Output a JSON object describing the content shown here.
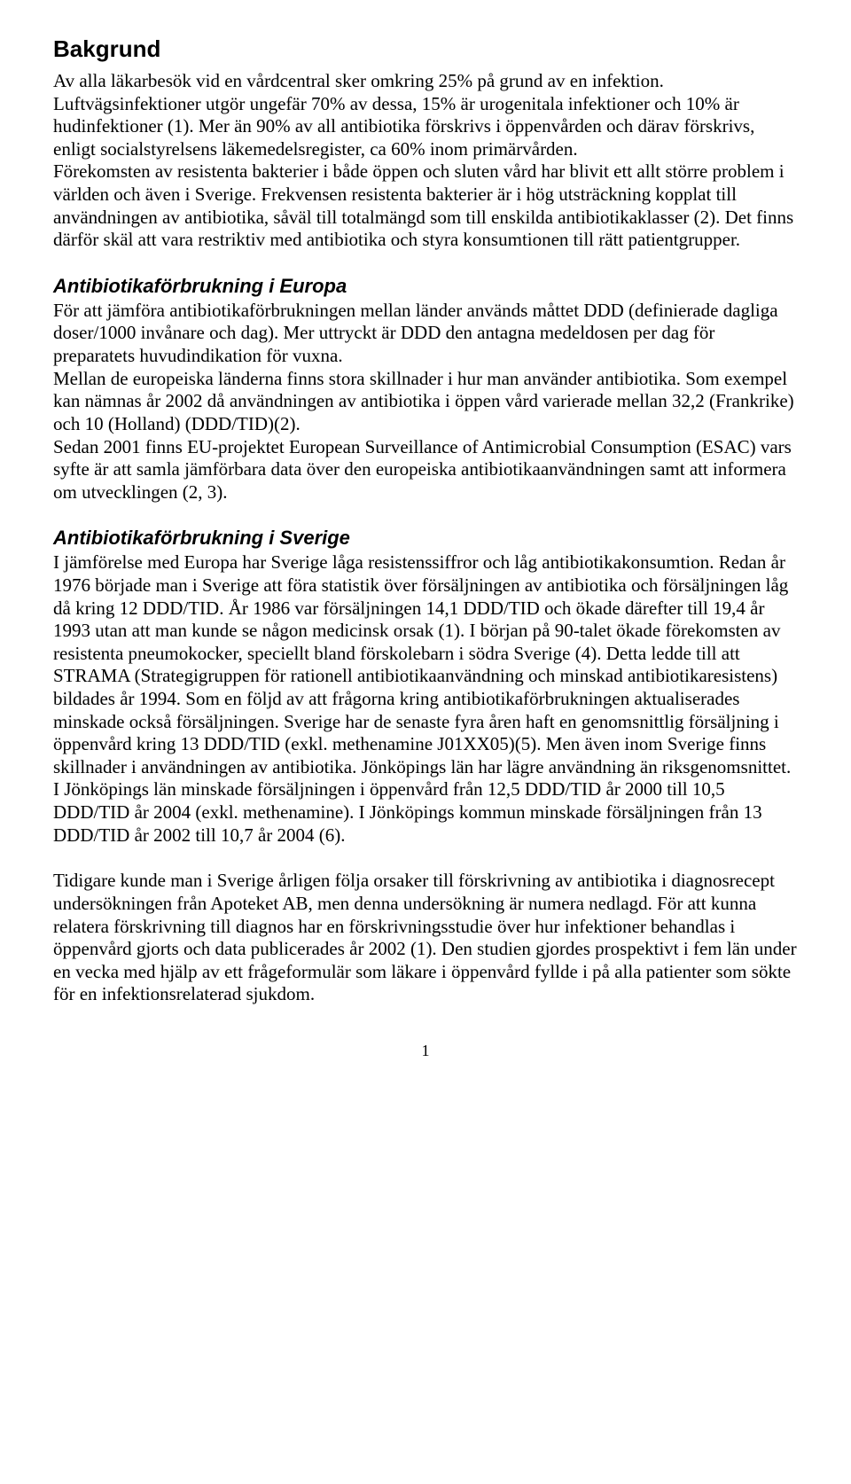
{
  "heading": "Bakgrund",
  "para1": "Av alla läkarbesök vid en vårdcentral sker omkring 25% på grund av en infektion. Luftvägsinfektioner utgör ungefär 70% av dessa, 15% är urogenitala infektioner och 10% är hudinfektioner (1). Mer än 90% av all antibiotika förskrivs i öppenvården och därav förskrivs, enligt socialstyrelsens läkemedelsregister, ca 60% inom primärvården.",
  "para1b": "Förekomsten av resistenta bakterier i både öppen och sluten vård har blivit ett allt större problem i världen och även i Sverige. Frekvensen resistenta bakterier är i hög utsträckning kopplat till användningen av antibiotika, såväl till totalmängd som till enskilda antibiotikaklasser (2). Det finns därför skäl att vara restriktiv med antibiotika och styra konsumtionen till rätt patientgrupper.",
  "section2_heading": "Antibiotikaförbrukning i Europa",
  "para2": "För att jämföra antibiotikaförbrukningen mellan länder används måttet DDD (definierade dagliga doser/1000 invånare och dag). Mer uttryckt är DDD den antagna medeldosen per dag för preparatets huvudindikation för vuxna.",
  "para2b": "Mellan de europeiska länderna finns stora skillnader i hur man använder antibiotika. Som exempel kan nämnas år 2002 då användningen av antibiotika i öppen vård varierade mellan 32,2 (Frankrike) och 10 (Holland) (DDD/TID)(2).",
  "para2c": "Sedan 2001 finns EU-projektet European Surveillance of Antimicrobial Consumption (ESAC) vars syfte är att samla jämförbara data över den europeiska antibiotikaanvändningen samt att informera om utvecklingen (2, 3).",
  "section3_heading": "Antibiotikaförbrukning i Sverige",
  "para3": "I jämförelse med Europa har Sverige låga resistenssiffror och låg antibiotikakonsumtion. Redan år 1976 började man i Sverige att föra statistik över försäljningen av antibiotika och försäljningen låg då kring 12 DDD/TID. År 1986 var försäljningen 14,1 DDD/TID och ökade därefter till 19,4 år 1993 utan att man kunde se någon medicinsk orsak (1). I början på 90-talet ökade förekomsten av resistenta pneumokocker, speciellt bland förskolebarn i södra Sverige (4). Detta ledde till att STRAMA (Strategigruppen för rationell antibiotikaanvändning och minskad antibiotikaresistens) bildades år 1994.  Som en följd av att frågorna kring antibiotikaförbrukningen aktualiserades minskade också försäljningen. Sverige har de senaste fyra åren haft en genomsnittlig försäljning i öppenvård kring 13 DDD/TID (exkl. methenamine J01XX05)(5).  Men även inom Sverige finns skillnader i användningen av antibiotika. Jönköpings län har lägre användning än riksgenomsnittet. I Jönköpings län minskade försäljningen i öppenvård från 12,5 DDD/TID år 2000 till 10,5 DDD/TID år 2004 (exkl. methenamine). I Jönköpings kommun minskade försäljningen från 13 DDD/TID år 2002 till 10,7 år 2004 (6).",
  "para4": "Tidigare kunde man i Sverige årligen följa orsaker till förskrivning av antibiotika i diagnosrecept undersökningen från Apoteket AB, men denna undersökning är numera nedlagd.  För att kunna relatera förskrivning till diagnos har en förskrivningsstudie över hur infektioner behandlas i öppenvård gjorts och data publicerades år 2002 (1). Den studien gjordes prospektivt i fem län under en vecka med hjälp av ett frågeformulär som läkare i öppenvård fyllde i på alla patienter som sökte för en infektionsrelaterad sjukdom.",
  "page_number": "1"
}
